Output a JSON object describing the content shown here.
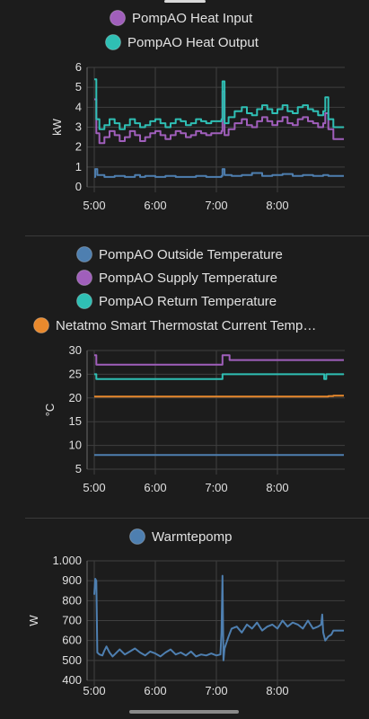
{
  "colors": {
    "blue": "#4e7fb0",
    "purple": "#a05fbb",
    "teal": "#2fbfb4",
    "orange": "#e8892d"
  },
  "chart_data": [
    {
      "type": "line",
      "title": "",
      "xlabel": "",
      "ylabel": "kW",
      "x_ticks": [
        "5:00",
        "6:00",
        "7:00",
        "8:00"
      ],
      "y_ticks": [
        "0",
        "1",
        "2",
        "3",
        "4",
        "5",
        "6"
      ],
      "ylim": [
        0,
        6
      ],
      "legend_placement": "top-center",
      "series": [
        {
          "name": "PompAO Heat Input",
          "color_key": "purple",
          "x": [
            "5:00",
            "5:02",
            "5:05",
            "5:10",
            "5:15",
            "5:20",
            "5:25",
            "5:30",
            "5:35",
            "5:40",
            "5:45",
            "5:50",
            "5:55",
            "6:00",
            "6:05",
            "6:10",
            "6:15",
            "6:20",
            "6:25",
            "6:30",
            "6:35",
            "6:40",
            "6:45",
            "6:50",
            "6:55",
            "7:00",
            "7:05",
            "7:06",
            "7:08",
            "7:12",
            "7:18",
            "7:25",
            "7:30",
            "7:35",
            "7:40",
            "7:45",
            "7:50",
            "7:55",
            "8:00",
            "8:05",
            "8:10",
            "8:15",
            "8:20",
            "8:25",
            "8:30",
            "8:35",
            "8:40",
            "8:45",
            "8:47",
            "8:50",
            "8:55"
          ],
          "y": [
            4.4,
            2.7,
            2.2,
            2.5,
            2.8,
            2.6,
            2.3,
            2.5,
            2.8,
            2.6,
            2.3,
            2.5,
            2.7,
            2.8,
            2.6,
            2.4,
            2.6,
            2.8,
            2.7,
            2.5,
            2.6,
            2.8,
            2.7,
            2.6,
            2.7,
            2.7,
            2.8,
            4.8,
            2.6,
            2.9,
            3.2,
            3.4,
            3.1,
            3.0,
            3.3,
            3.5,
            3.3,
            3.1,
            3.3,
            3.5,
            3.2,
            3.1,
            3.4,
            3.5,
            3.3,
            3.2,
            3.0,
            3.2,
            3.7,
            2.9,
            2.4
          ]
        },
        {
          "name": "PompAO Heat Output",
          "color_key": "teal",
          "x": [
            "5:00",
            "5:02",
            "5:05",
            "5:10",
            "5:15",
            "5:20",
            "5:25",
            "5:30",
            "5:35",
            "5:40",
            "5:45",
            "5:50",
            "5:55",
            "6:00",
            "6:05",
            "6:10",
            "6:15",
            "6:20",
            "6:25",
            "6:30",
            "6:35",
            "6:40",
            "6:45",
            "6:50",
            "6:55",
            "7:00",
            "7:05",
            "7:06",
            "7:08",
            "7:12",
            "7:18",
            "7:25",
            "7:30",
            "7:35",
            "7:40",
            "7:45",
            "7:50",
            "7:55",
            "8:00",
            "8:05",
            "8:10",
            "8:15",
            "8:20",
            "8:25",
            "8:30",
            "8:35",
            "8:40",
            "8:45",
            "8:47",
            "8:50",
            "8:55"
          ],
          "y": [
            5.4,
            3.4,
            2.9,
            3.1,
            3.4,
            3.2,
            2.9,
            3.1,
            3.4,
            3.2,
            3.0,
            3.1,
            3.3,
            3.4,
            3.2,
            3.0,
            3.2,
            3.4,
            3.3,
            3.1,
            3.2,
            3.4,
            3.3,
            3.2,
            3.3,
            3.3,
            3.4,
            5.3,
            3.2,
            3.5,
            3.8,
            4.0,
            3.7,
            3.6,
            3.9,
            4.1,
            3.9,
            3.7,
            3.9,
            4.1,
            3.8,
            3.7,
            4.0,
            4.1,
            3.9,
            3.8,
            3.6,
            3.8,
            4.5,
            3.4,
            3.0
          ]
        },
        {
          "name": "",
          "color_key": "blue",
          "x": [
            "5:00",
            "5:01",
            "5:03",
            "5:10",
            "5:20",
            "5:30",
            "5:40",
            "5:45",
            "5:50",
            "6:00",
            "6:10",
            "6:20",
            "6:30",
            "6:40",
            "6:50",
            "7:00",
            "7:05",
            "7:06",
            "7:08",
            "7:15",
            "7:25",
            "7:35",
            "7:45",
            "7:55",
            "8:05",
            "8:15",
            "8:25",
            "8:35",
            "8:45",
            "8:50",
            "8:55"
          ],
          "y": [
            0.5,
            0.9,
            0.6,
            0.5,
            0.55,
            0.5,
            0.6,
            0.5,
            0.55,
            0.5,
            0.55,
            0.5,
            0.5,
            0.55,
            0.5,
            0.5,
            0.55,
            0.9,
            0.6,
            0.55,
            0.6,
            0.7,
            0.55,
            0.6,
            0.65,
            0.55,
            0.6,
            0.55,
            0.6,
            0.55,
            0.55
          ]
        }
      ]
    },
    {
      "type": "line",
      "title": "",
      "xlabel": "",
      "ylabel": "°C",
      "x_ticks": [
        "5:00",
        "6:00",
        "7:00",
        "8:00"
      ],
      "y_ticks": [
        "5",
        "10",
        "15",
        "20",
        "25",
        "30"
      ],
      "ylim": [
        5,
        30
      ],
      "legend_placement": "top-center",
      "series": [
        {
          "name": "PompAO Outside Temperature",
          "color_key": "blue",
          "x": [
            "5:00",
            "8:55"
          ],
          "y": [
            8.0,
            8.0
          ]
        },
        {
          "name": "PompAO Supply Temperature",
          "color_key": "purple",
          "x": [
            "5:00",
            "5:01",
            "5:02",
            "7:05",
            "7:06",
            "7:12",
            "7:13",
            "8:47",
            "8:48",
            "8:55"
          ],
          "y": [
            29.0,
            29.0,
            27.0,
            27.0,
            29.0,
            29.0,
            28.0,
            28.0,
            28.0,
            28.0
          ]
        },
        {
          "name": "PompAO Return Temperature",
          "color_key": "teal",
          "x": [
            "5:00",
            "5:01",
            "5:02",
            "7:05",
            "7:06",
            "8:45",
            "8:46",
            "8:47",
            "8:48",
            "8:55"
          ],
          "y": [
            25.0,
            25.0,
            24.0,
            24.0,
            25.0,
            25.0,
            24.0,
            24.0,
            25.0,
            25.0
          ]
        },
        {
          "name": "Netatmo Smart Thermostat Current Temp…",
          "color_key": "orange",
          "x": [
            "5:00",
            "8:50",
            "8:55"
          ],
          "y": [
            20.3,
            20.4,
            20.5
          ]
        }
      ]
    },
    {
      "type": "line",
      "title": "",
      "xlabel": "",
      "ylabel": "W",
      "x_ticks": [
        "5:00",
        "6:00",
        "7:00",
        "8:00"
      ],
      "y_ticks": [
        "400",
        "500",
        "600",
        "700",
        "800",
        "900",
        "1.000"
      ],
      "ylim": [
        400,
        1000
      ],
      "legend_placement": "top-center",
      "series": [
        {
          "name": "Warmtepomp",
          "color_key": "blue",
          "x": [
            "5:00",
            "5:01",
            "5:02",
            "5:03",
            "5:05",
            "5:08",
            "5:10",
            "5:12",
            "5:15",
            "5:18",
            "5:20",
            "5:25",
            "5:30",
            "5:35",
            "5:40",
            "5:45",
            "5:50",
            "5:55",
            "6:00",
            "6:05",
            "6:10",
            "6:15",
            "6:20",
            "6:25",
            "6:30",
            "6:35",
            "6:40",
            "6:45",
            "6:50",
            "6:55",
            "7:00",
            "7:04",
            "7:05",
            "7:06",
            "7:07",
            "7:08",
            "7:10",
            "7:12",
            "7:15",
            "7:20",
            "7:25",
            "7:30",
            "7:35",
            "7:40",
            "7:45",
            "7:50",
            "7:55",
            "8:00",
            "8:05",
            "8:10",
            "8:15",
            "8:20",
            "8:25",
            "8:30",
            "8:35",
            "8:40",
            "8:43",
            "8:44",
            "8:45",
            "8:47",
            "8:50",
            "8:53",
            "8:55"
          ],
          "y": [
            830,
            910,
            900,
            540,
            530,
            525,
            550,
            570,
            540,
            520,
            530,
            555,
            530,
            545,
            560,
            540,
            525,
            545,
            535,
            520,
            540,
            555,
            530,
            540,
            525,
            545,
            520,
            530,
            525,
            535,
            525,
            530,
            640,
            925,
            500,
            560,
            590,
            620,
            660,
            670,
            640,
            680,
            660,
            690,
            650,
            670,
            680,
            660,
            700,
            670,
            690,
            680,
            660,
            700,
            660,
            670,
            680,
            730,
            640,
            600,
            620,
            630,
            650
          ]
        }
      ]
    }
  ]
}
